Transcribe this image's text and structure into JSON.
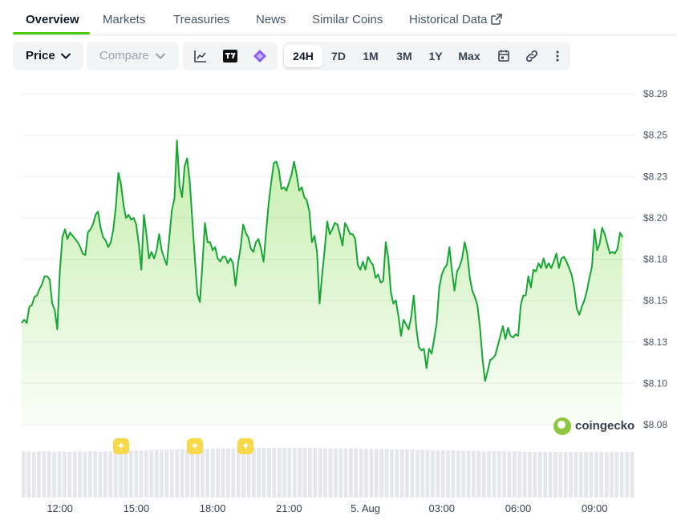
{
  "tabs": [
    {
      "label": "Overview",
      "active": true
    },
    {
      "label": "Markets"
    },
    {
      "label": "Treasuries"
    },
    {
      "label": "News"
    },
    {
      "label": "Similar Coins"
    },
    {
      "label": "Historical Data",
      "external_icon": "external-link-icon"
    }
  ],
  "toolbar": {
    "price_label": "Price",
    "compare_label": "Compare",
    "chart_icons": [
      "line-chart-icon",
      "tradingview-icon",
      "diamond-icon"
    ],
    "ranges": [
      "24H",
      "7D",
      "1M",
      "3M",
      "1Y",
      "Max"
    ],
    "active_range": "24H",
    "tool_icons": [
      "calendar-icon",
      "link-icon",
      "more-vertical-icon"
    ]
  },
  "watermark": "coingecko",
  "colors": {
    "line": "#17a534",
    "fill": "#4bcc00",
    "accent": "#4bcc00",
    "marker": "#f9d94c"
  },
  "chart_data": {
    "type": "area",
    "y_ticks": [
      "$8.28",
      "$8.25",
      "$8.23",
      "$8.20",
      "$8.18",
      "$8.15",
      "$8.13",
      "$8.10",
      "$8.08"
    ],
    "ylim": [
      8.075,
      8.28
    ],
    "x_ticks": [
      "12:00",
      "15:00",
      "18:00",
      "21:00",
      "5. Aug",
      "03:00",
      "06:00",
      "09:00"
    ],
    "xlim": [
      10.5,
      34.6
    ],
    "grid": true,
    "points": [
      [
        10.5,
        8.138
      ],
      [
        10.6,
        8.14
      ],
      [
        10.7,
        8.138
      ],
      [
        10.8,
        8.148
      ],
      [
        10.9,
        8.149
      ],
      [
        11.0,
        8.154
      ],
      [
        11.1,
        8.155
      ],
      [
        11.2,
        8.159
      ],
      [
        11.3,
        8.162
      ],
      [
        11.4,
        8.167
      ],
      [
        11.5,
        8.167
      ],
      [
        11.6,
        8.165
      ],
      [
        11.7,
        8.15
      ],
      [
        11.8,
        8.146
      ],
      [
        11.9,
        8.134
      ],
      [
        12.0,
        8.17
      ],
      [
        12.1,
        8.191
      ],
      [
        12.2,
        8.196
      ],
      [
        12.3,
        8.19
      ],
      [
        12.4,
        8.194
      ],
      [
        12.6,
        8.19
      ],
      [
        12.7,
        8.188
      ],
      [
        12.8,
        8.185
      ],
      [
        12.9,
        8.181
      ],
      [
        13.0,
        8.18
      ],
      [
        13.1,
        8.194
      ],
      [
        13.2,
        8.196
      ],
      [
        13.3,
        8.199
      ],
      [
        13.4,
        8.205
      ],
      [
        13.5,
        8.207
      ],
      [
        13.6,
        8.197
      ],
      [
        13.7,
        8.191
      ],
      [
        13.8,
        8.189
      ],
      [
        13.9,
        8.185
      ],
      [
        14.0,
        8.188
      ],
      [
        14.1,
        8.196
      ],
      [
        14.2,
        8.21
      ],
      [
        14.3,
        8.231
      ],
      [
        14.4,
        8.224
      ],
      [
        14.5,
        8.211
      ],
      [
        14.6,
        8.203
      ],
      [
        14.7,
        8.205
      ],
      [
        14.8,
        8.202
      ],
      [
        14.9,
        8.203
      ],
      [
        15.0,
        8.199
      ],
      [
        15.1,
        8.187
      ],
      [
        15.2,
        8.171
      ],
      [
        15.3,
        8.205
      ],
      [
        15.4,
        8.193
      ],
      [
        15.5,
        8.178
      ],
      [
        15.6,
        8.182
      ],
      [
        15.7,
        8.178
      ],
      [
        15.8,
        8.183
      ],
      [
        15.9,
        8.193
      ],
      [
        16.0,
        8.183
      ],
      [
        16.1,
        8.178
      ],
      [
        16.2,
        8.174
      ],
      [
        16.3,
        8.191
      ],
      [
        16.4,
        8.208
      ],
      [
        16.5,
        8.215
      ],
      [
        16.6,
        8.251
      ],
      [
        16.7,
        8.223
      ],
      [
        16.8,
        8.216
      ],
      [
        16.9,
        8.235
      ],
      [
        17.0,
        8.24
      ],
      [
        17.1,
        8.226
      ],
      [
        17.2,
        8.202
      ],
      [
        17.3,
        8.178
      ],
      [
        17.4,
        8.156
      ],
      [
        17.5,
        8.151
      ],
      [
        17.6,
        8.175
      ],
      [
        17.7,
        8.2
      ],
      [
        17.8,
        8.188
      ],
      [
        17.9,
        8.188
      ],
      [
        18.0,
        8.183
      ],
      [
        18.1,
        8.185
      ],
      [
        18.2,
        8.178
      ],
      [
        18.3,
        8.176
      ],
      [
        18.4,
        8.179
      ],
      [
        18.5,
        8.179
      ],
      [
        18.6,
        8.175
      ],
      [
        18.7,
        8.178
      ],
      [
        18.8,
        8.175
      ],
      [
        18.9,
        8.161
      ],
      [
        19.0,
        8.175
      ],
      [
        19.1,
        8.185
      ],
      [
        19.2,
        8.199
      ],
      [
        19.3,
        8.194
      ],
      [
        19.4,
        8.191
      ],
      [
        19.5,
        8.184
      ],
      [
        19.6,
        8.182
      ],
      [
        19.7,
        8.188
      ],
      [
        19.8,
        8.19
      ],
      [
        19.9,
        8.184
      ],
      [
        20.0,
        8.176
      ],
      [
        20.1,
        8.194
      ],
      [
        20.2,
        8.212
      ],
      [
        20.3,
        8.225
      ],
      [
        20.4,
        8.237
      ],
      [
        20.5,
        8.238
      ],
      [
        20.6,
        8.233
      ],
      [
        20.7,
        8.221
      ],
      [
        20.8,
        8.222
      ],
      [
        20.9,
        8.22
      ],
      [
        21.0,
        8.225
      ],
      [
        21.1,
        8.23
      ],
      [
        21.2,
        8.238
      ],
      [
        21.3,
        8.23
      ],
      [
        21.4,
        8.22
      ],
      [
        21.5,
        8.222
      ],
      [
        21.6,
        8.216
      ],
      [
        21.7,
        8.214
      ],
      [
        21.8,
        8.207
      ],
      [
        21.9,
        8.188
      ],
      [
        22.0,
        8.192
      ],
      [
        22.1,
        8.182
      ],
      [
        22.2,
        8.15
      ],
      [
        22.3,
        8.168
      ],
      [
        22.4,
        8.183
      ],
      [
        22.5,
        8.201
      ],
      [
        22.6,
        8.193
      ],
      [
        22.7,
        8.196
      ],
      [
        22.8,
        8.2
      ],
      [
        22.9,
        8.199
      ],
      [
        23.0,
        8.193
      ],
      [
        23.1,
        8.186
      ],
      [
        23.2,
        8.2
      ],
      [
        23.3,
        8.197
      ],
      [
        23.4,
        8.193
      ],
      [
        23.5,
        8.193
      ],
      [
        23.6,
        8.19
      ],
      [
        23.7,
        8.174
      ],
      [
        23.8,
        8.171
      ],
      [
        23.9,
        8.176
      ],
      [
        24.0,
        8.171
      ],
      [
        24.1,
        8.179
      ],
      [
        24.2,
        8.176
      ],
      [
        24.3,
        8.174
      ],
      [
        24.4,
        8.166
      ],
      [
        24.5,
        8.168
      ],
      [
        24.6,
        8.163
      ],
      [
        24.7,
        8.164
      ],
      [
        24.8,
        8.188
      ],
      [
        24.9,
        8.178
      ],
      [
        25.0,
        8.157
      ],
      [
        25.1,
        8.15
      ],
      [
        25.2,
        8.152
      ],
      [
        25.3,
        8.142
      ],
      [
        25.4,
        8.13
      ],
      [
        25.5,
        8.14
      ],
      [
        25.6,
        8.137
      ],
      [
        25.7,
        8.134
      ],
      [
        25.8,
        8.142
      ],
      [
        25.9,
        8.155
      ],
      [
        26.0,
        8.135
      ],
      [
        26.1,
        8.123
      ],
      [
        26.2,
        8.121
      ],
      [
        26.3,
        8.122
      ],
      [
        26.4,
        8.11
      ],
      [
        26.5,
        8.122
      ],
      [
        26.6,
        8.119
      ],
      [
        26.7,
        8.128
      ],
      [
        26.8,
        8.138
      ],
      [
        26.9,
        8.16
      ],
      [
        27.0,
        8.168
      ],
      [
        27.1,
        8.172
      ],
      [
        27.2,
        8.174
      ],
      [
        27.3,
        8.185
      ],
      [
        27.4,
        8.17
      ],
      [
        27.5,
        8.158
      ],
      [
        27.6,
        8.17
      ],
      [
        27.7,
        8.173
      ],
      [
        27.8,
        8.178
      ],
      [
        27.9,
        8.188
      ],
      [
        28.0,
        8.181
      ],
      [
        28.1,
        8.166
      ],
      [
        28.2,
        8.158
      ],
      [
        28.3,
        8.154
      ],
      [
        28.4,
        8.149
      ],
      [
        28.5,
        8.135
      ],
      [
        28.6,
        8.116
      ],
      [
        28.7,
        8.102
      ],
      [
        28.8,
        8.108
      ],
      [
        28.9,
        8.115
      ],
      [
        29.0,
        8.116
      ],
      [
        29.1,
        8.118
      ],
      [
        29.2,
        8.124
      ],
      [
        29.3,
        8.13
      ],
      [
        29.4,
        8.136
      ],
      [
        29.5,
        8.128
      ],
      [
        29.6,
        8.135
      ],
      [
        29.7,
        8.13
      ],
      [
        29.8,
        8.129
      ],
      [
        29.9,
        8.131
      ],
      [
        30.0,
        8.13
      ],
      [
        30.1,
        8.149
      ],
      [
        30.2,
        8.155
      ],
      [
        30.3,
        8.155
      ],
      [
        30.4,
        8.167
      ],
      [
        30.5,
        8.16
      ],
      [
        30.6,
        8.171
      ],
      [
        30.7,
        8.17
      ],
      [
        30.8,
        8.175
      ],
      [
        30.9,
        8.172
      ],
      [
        31.0,
        8.178
      ],
      [
        31.1,
        8.172
      ],
      [
        31.2,
        8.175
      ],
      [
        31.3,
        8.172
      ],
      [
        31.4,
        8.176
      ],
      [
        31.5,
        8.181
      ],
      [
        31.6,
        8.172
      ],
      [
        31.7,
        8.178
      ],
      [
        31.8,
        8.179
      ],
      [
        31.9,
        8.176
      ],
      [
        32.0,
        8.172
      ],
      [
        32.1,
        8.168
      ],
      [
        32.2,
        8.16
      ],
      [
        32.3,
        8.147
      ],
      [
        32.4,
        8.143
      ],
      [
        32.5,
        8.148
      ],
      [
        32.6,
        8.152
      ],
      [
        32.7,
        8.158
      ],
      [
        32.8,
        8.166
      ],
      [
        32.9,
        8.173
      ],
      [
        33.0,
        8.196
      ],
      [
        33.1,
        8.183
      ],
      [
        33.2,
        8.187
      ],
      [
        33.3,
        8.197
      ],
      [
        33.4,
        8.193
      ],
      [
        33.5,
        8.187
      ],
      [
        33.6,
        8.181
      ],
      [
        33.7,
        8.182
      ],
      [
        33.8,
        8.181
      ],
      [
        33.9,
        8.184
      ],
      [
        34.0,
        8.194
      ],
      [
        34.1,
        8.191
      ]
    ],
    "volume": [
      0.93,
      0.93,
      0.92,
      0.93,
      0.93,
      0.93,
      0.92,
      0.93,
      0.93,
      0.92,
      0.93,
      0.93,
      0.92,
      0.93,
      0.93,
      0.92,
      0.93,
      0.93,
      0.94,
      0.94,
      0.94,
      0.94,
      0.95,
      0.95,
      0.95,
      0.96,
      0.96,
      0.96,
      0.97,
      0.97,
      0.97,
      0.97,
      0.97,
      0.98,
      0.98,
      0.98,
      0.98,
      0.98,
      0.99,
      0.99,
      0.99,
      0.99,
      0.99,
      0.99,
      1.0,
      1.0,
      1.0,
      1.0,
      1.0,
      1.0,
      1.0,
      1.0,
      1.0,
      1.0,
      1.0,
      1.0,
      1.0,
      1.0,
      0.99,
      0.99,
      0.99,
      0.99,
      0.99,
      0.99,
      0.99,
      0.99,
      0.98,
      0.98,
      0.98,
      0.98,
      0.98,
      0.98,
      0.97,
      0.97,
      0.97,
      0.97,
      0.97,
      0.96,
      0.96,
      0.96,
      0.96,
      0.95,
      0.95,
      0.95,
      0.95,
      0.94,
      0.94,
      0.94,
      0.94,
      0.94,
      0.93,
      0.93,
      0.93,
      0.93,
      0.93,
      0.93,
      0.93,
      0.93,
      0.92,
      0.92,
      0.92,
      0.92,
      0.92,
      0.92,
      0.92,
      0.92,
      0.92,
      0.92,
      0.92,
      0.92,
      0.92,
      0.92,
      0.92,
      0.92,
      0.92,
      0.92,
      0.92,
      0.92,
      0.92,
      0.92
    ],
    "event_markers": [
      14.4,
      17.3,
      19.3
    ]
  }
}
